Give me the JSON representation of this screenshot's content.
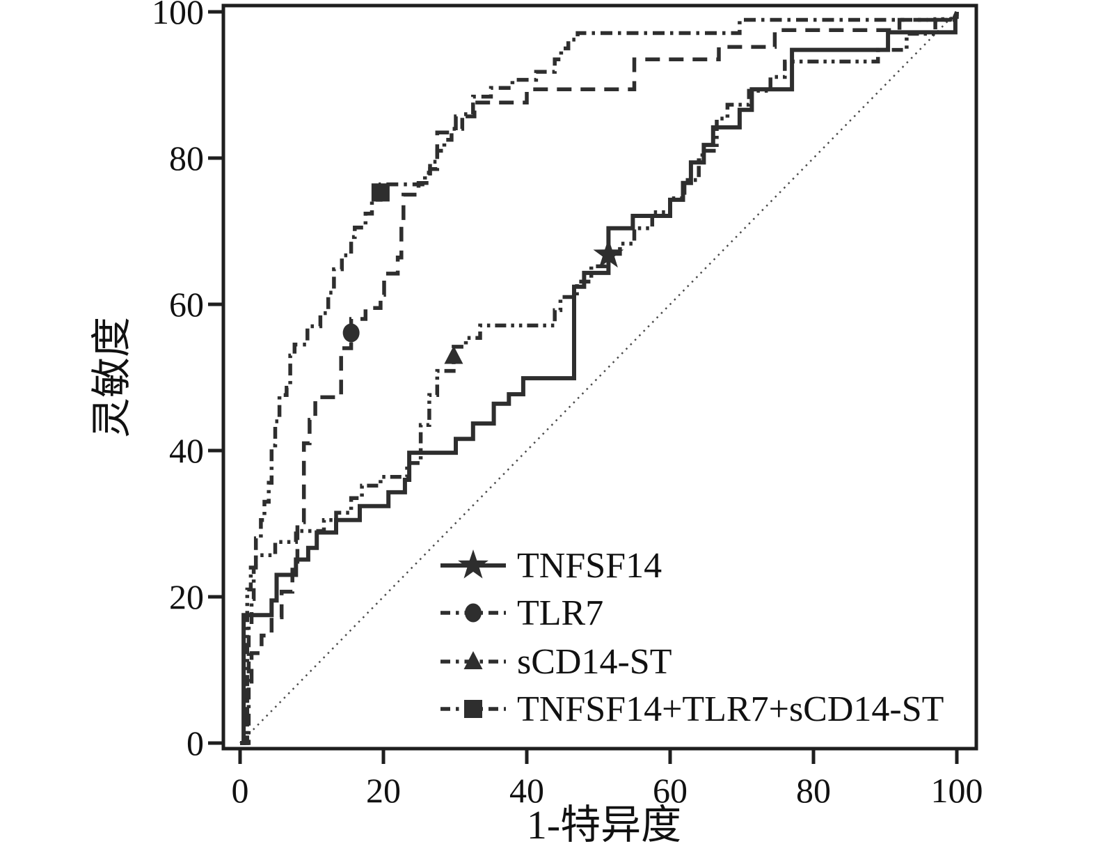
{
  "figure": {
    "background": "#ffffff",
    "line_color": "#2e2e2e",
    "frame_color": "#1f1f1f",
    "text_color": "#111111",
    "reference_color": "#4a4a4a"
  },
  "chart_data": {
    "type": "line",
    "subtype": "roc-curves",
    "title": "",
    "xlabel": "1-特异度",
    "ylabel": "灵敏度",
    "xlim": [
      0,
      100
    ],
    "ylim": [
      0,
      100
    ],
    "xticks": [
      "0",
      "20",
      "40",
      "60",
      "80",
      "100"
    ],
    "yticks": [
      "0",
      "20",
      "40",
      "60",
      "80",
      "100"
    ],
    "grid": false,
    "legend_position": "inside lower right",
    "reference_line": {
      "name": "chance-diagonal",
      "style": "dotted",
      "points": [
        [
          0,
          0
        ],
        [
          100,
          100
        ]
      ]
    },
    "series": [
      {
        "name": "TNFSF14",
        "line_style": "solid",
        "marker": "star",
        "marker_at": [
          51.4,
          66.8
        ],
        "points": [
          [
            0,
            0
          ],
          [
            0.5,
            0
          ],
          [
            0.5,
            17.5
          ],
          [
            4.4,
            17.5
          ],
          [
            4.4,
            19.5
          ],
          [
            5.1,
            19.5
          ],
          [
            5.1,
            23
          ],
          [
            7.8,
            23
          ],
          [
            7.8,
            25.1
          ],
          [
            9.5,
            25.1
          ],
          [
            9.5,
            26.7
          ],
          [
            10.7,
            26.7
          ],
          [
            10.7,
            28.8
          ],
          [
            13.4,
            28.8
          ],
          [
            13.4,
            30.5
          ],
          [
            16.7,
            30.5
          ],
          [
            16.7,
            32.4
          ],
          [
            20.7,
            32.4
          ],
          [
            20.7,
            34.3
          ],
          [
            23,
            34.3
          ],
          [
            23,
            36
          ],
          [
            23.6,
            36
          ],
          [
            23.6,
            39.7
          ],
          [
            30.1,
            39.7
          ],
          [
            30.1,
            41.6
          ],
          [
            32.5,
            41.6
          ],
          [
            32.5,
            43.7
          ],
          [
            35.4,
            43.7
          ],
          [
            35.4,
            46.4
          ],
          [
            37.5,
            46.4
          ],
          [
            37.5,
            47.7
          ],
          [
            39.5,
            47.7
          ],
          [
            39.5,
            49.9
          ],
          [
            46.6,
            49.9
          ],
          [
            46.6,
            62.4
          ],
          [
            48,
            62.4
          ],
          [
            48,
            64.3
          ],
          [
            51.4,
            64.3
          ],
          [
            51.4,
            70.4
          ],
          [
            54.8,
            70.4
          ],
          [
            54.8,
            72.1
          ],
          [
            60,
            72.1
          ],
          [
            60,
            74.3
          ],
          [
            61.8,
            74.3
          ],
          [
            61.8,
            76.6
          ],
          [
            62.9,
            76.6
          ],
          [
            62.9,
            79.4
          ],
          [
            64.7,
            79.4
          ],
          [
            64.7,
            81.8
          ],
          [
            66,
            81.8
          ],
          [
            66,
            84.2
          ],
          [
            69.7,
            84.2
          ],
          [
            69.7,
            86.6
          ],
          [
            71.4,
            86.6
          ],
          [
            71.4,
            89.4
          ],
          [
            77,
            89.4
          ],
          [
            77,
            94.8
          ],
          [
            90.4,
            94.8
          ],
          [
            90.4,
            97.2
          ],
          [
            99.8,
            97.2
          ],
          [
            99.8,
            98.9
          ],
          [
            100,
            100
          ]
        ]
      },
      {
        "name": "TLR7",
        "line_style": "dashed",
        "marker": "circle",
        "marker_at": [
          15.5,
          56.1
        ],
        "points": [
          [
            0,
            0
          ],
          [
            1,
            0
          ],
          [
            1,
            8.1
          ],
          [
            1.6,
            8.1
          ],
          [
            1.6,
            12.3
          ],
          [
            3,
            12.3
          ],
          [
            3,
            14.7
          ],
          [
            4.4,
            14.7
          ],
          [
            4.4,
            17.2
          ],
          [
            5.8,
            17.2
          ],
          [
            5.8,
            20.7
          ],
          [
            7.3,
            20.7
          ],
          [
            7.3,
            24.8
          ],
          [
            8,
            24.8
          ],
          [
            8,
            30.2
          ],
          [
            8.9,
            30.2
          ],
          [
            8.9,
            41
          ],
          [
            9.7,
            41
          ],
          [
            9.7,
            44.2
          ],
          [
            10.5,
            44.2
          ],
          [
            10.5,
            47.3
          ],
          [
            14.1,
            47.3
          ],
          [
            14.1,
            54
          ],
          [
            15.5,
            54
          ],
          [
            15.5,
            58
          ],
          [
            17.5,
            58
          ],
          [
            17.5,
            59.5
          ],
          [
            19.6,
            59.5
          ],
          [
            19.6,
            61.3
          ],
          [
            20.1,
            61.3
          ],
          [
            20.1,
            64.2
          ],
          [
            22,
            64.2
          ],
          [
            22,
            66.4
          ],
          [
            22.5,
            66.4
          ],
          [
            22.5,
            71.8
          ],
          [
            22.8,
            71.8
          ],
          [
            22.8,
            75
          ],
          [
            24.9,
            75
          ],
          [
            24.9,
            76.6
          ],
          [
            26.5,
            76.6
          ],
          [
            26.5,
            78.5
          ],
          [
            27.5,
            78.5
          ],
          [
            27.5,
            83.5
          ],
          [
            30.1,
            83.5
          ],
          [
            30.1,
            85.7
          ],
          [
            32.7,
            85.7
          ],
          [
            32.7,
            87.6
          ],
          [
            40,
            87.6
          ],
          [
            40,
            89.4
          ],
          [
            55,
            89.4
          ],
          [
            55,
            93.5
          ],
          [
            66.8,
            93.5
          ],
          [
            66.8,
            95.2
          ],
          [
            74.6,
            95.2
          ],
          [
            74.6,
            97.5
          ],
          [
            92,
            97.5
          ],
          [
            92,
            98.9
          ],
          [
            100,
            98.9
          ],
          [
            100,
            100
          ]
        ]
      },
      {
        "name": "sCD14-ST",
        "line_style": "dash-dot-dot",
        "marker": "triangle",
        "marker_at": [
          29.8,
          52.9
        ],
        "points": [
          [
            0,
            0
          ],
          [
            1,
            0
          ],
          [
            1,
            21
          ],
          [
            1.5,
            21
          ],
          [
            1.5,
            24
          ],
          [
            2.2,
            24
          ],
          [
            2.2,
            25.7
          ],
          [
            4.9,
            25.7
          ],
          [
            4.9,
            27.5
          ],
          [
            7.8,
            27.5
          ],
          [
            7.8,
            29
          ],
          [
            11.7,
            29
          ],
          [
            11.7,
            30.5
          ],
          [
            13.4,
            30.5
          ],
          [
            13.4,
            31.5
          ],
          [
            15.5,
            31.5
          ],
          [
            15.5,
            33.5
          ],
          [
            17,
            33.5
          ],
          [
            17,
            35.2
          ],
          [
            19.6,
            35.2
          ],
          [
            19.6,
            36.4
          ],
          [
            23.3,
            36.4
          ],
          [
            23.3,
            38.3
          ],
          [
            25.2,
            38.3
          ],
          [
            25.2,
            43.5
          ],
          [
            26.4,
            43.5
          ],
          [
            26.4,
            47.6
          ],
          [
            27.5,
            47.6
          ],
          [
            27.5,
            50.9
          ],
          [
            29.8,
            50.9
          ],
          [
            29.8,
            54.2
          ],
          [
            31.5,
            54.2
          ],
          [
            31.5,
            55.4
          ],
          [
            33.5,
            55.4
          ],
          [
            33.5,
            57.1
          ],
          [
            43.9,
            57.1
          ],
          [
            43.9,
            59.2
          ],
          [
            44.7,
            59.2
          ],
          [
            44.7,
            61
          ],
          [
            47,
            61
          ],
          [
            47,
            63.1
          ],
          [
            49,
            63.1
          ],
          [
            49,
            65.2
          ],
          [
            51,
            65.2
          ],
          [
            51,
            66.9
          ],
          [
            53,
            66.9
          ],
          [
            53,
            68.3
          ],
          [
            55,
            68.3
          ],
          [
            55,
            70.4
          ],
          [
            57.5,
            70.4
          ],
          [
            57.5,
            72.6
          ],
          [
            60,
            72.6
          ],
          [
            60,
            74.5
          ],
          [
            62,
            74.5
          ],
          [
            62,
            77
          ],
          [
            64,
            77
          ],
          [
            64,
            79.7
          ],
          [
            64.5,
            79.7
          ],
          [
            64.5,
            81
          ],
          [
            66.5,
            81
          ],
          [
            66.5,
            85.4
          ],
          [
            68,
            85.4
          ],
          [
            68,
            87.3
          ],
          [
            71,
            87.3
          ],
          [
            71,
            89.2
          ],
          [
            74,
            89.2
          ],
          [
            74,
            91.1
          ],
          [
            76,
            91.1
          ],
          [
            76,
            93.2
          ],
          [
            89,
            93.2
          ],
          [
            89,
            94.8
          ],
          [
            93,
            94.8
          ],
          [
            93,
            97
          ],
          [
            97,
            97
          ],
          [
            97,
            99
          ],
          [
            100,
            99
          ],
          [
            100,
            100
          ]
        ]
      },
      {
        "name": "TNFSF14+TLR7+sCD14-ST",
        "line_style": "dash-dot",
        "marker": "square",
        "marker_at": [
          19.6,
          75.3
        ],
        "points": [
          [
            0,
            0
          ],
          [
            1.2,
            0
          ],
          [
            1.2,
            16
          ],
          [
            1.6,
            16
          ],
          [
            1.6,
            19.7
          ],
          [
            1.9,
            19.7
          ],
          [
            1.9,
            24
          ],
          [
            2.2,
            24
          ],
          [
            2.2,
            28
          ],
          [
            2.9,
            28
          ],
          [
            2.9,
            30.5
          ],
          [
            3.4,
            30.5
          ],
          [
            3.4,
            33
          ],
          [
            4,
            33
          ],
          [
            4,
            35.6
          ],
          [
            4.4,
            35.6
          ],
          [
            4.4,
            40.7
          ],
          [
            4.9,
            40.7
          ],
          [
            4.9,
            44
          ],
          [
            5.5,
            44
          ],
          [
            5.5,
            47.6
          ],
          [
            6.5,
            47.6
          ],
          [
            6.5,
            48.6
          ],
          [
            7,
            48.6
          ],
          [
            7,
            53
          ],
          [
            7.6,
            53
          ],
          [
            7.6,
            54.5
          ],
          [
            9.4,
            54.5
          ],
          [
            9.4,
            57
          ],
          [
            11.2,
            57
          ],
          [
            11.2,
            58.8
          ],
          [
            12.3,
            58.8
          ],
          [
            12.3,
            61.6
          ],
          [
            13.1,
            61.6
          ],
          [
            13.1,
            64.8
          ],
          [
            14.2,
            64.8
          ],
          [
            14.2,
            66.7
          ],
          [
            15.5,
            66.7
          ],
          [
            15.5,
            69.2
          ],
          [
            16,
            69.2
          ],
          [
            16,
            70.5
          ],
          [
            17.5,
            70.5
          ],
          [
            17.5,
            72.4
          ],
          [
            18.4,
            72.4
          ],
          [
            18.4,
            74.3
          ],
          [
            19.6,
            74.3
          ],
          [
            19.6,
            76.4
          ],
          [
            25.8,
            76.4
          ],
          [
            25.8,
            78
          ],
          [
            26.5,
            78
          ],
          [
            26.5,
            79.5
          ],
          [
            27.5,
            79.5
          ],
          [
            27.5,
            81
          ],
          [
            28.5,
            81
          ],
          [
            28.5,
            82.5
          ],
          [
            29.5,
            82.5
          ],
          [
            29.5,
            84
          ],
          [
            31,
            84
          ],
          [
            31,
            86
          ],
          [
            32.5,
            86
          ],
          [
            32.5,
            88.4
          ],
          [
            35,
            88.4
          ],
          [
            35,
            89.6
          ],
          [
            38,
            89.6
          ],
          [
            38,
            90.7
          ],
          [
            41.3,
            90.7
          ],
          [
            41.3,
            91.8
          ],
          [
            43.9,
            91.8
          ],
          [
            43.9,
            93.5
          ],
          [
            44.8,
            93.5
          ],
          [
            44.8,
            95
          ],
          [
            45.8,
            95
          ],
          [
            45.8,
            96.2
          ],
          [
            47.1,
            96.2
          ],
          [
            47.1,
            97.1
          ],
          [
            69.7,
            97.1
          ],
          [
            69.7,
            98.9
          ],
          [
            99.5,
            98.9
          ],
          [
            100,
            100
          ]
        ]
      }
    ]
  }
}
